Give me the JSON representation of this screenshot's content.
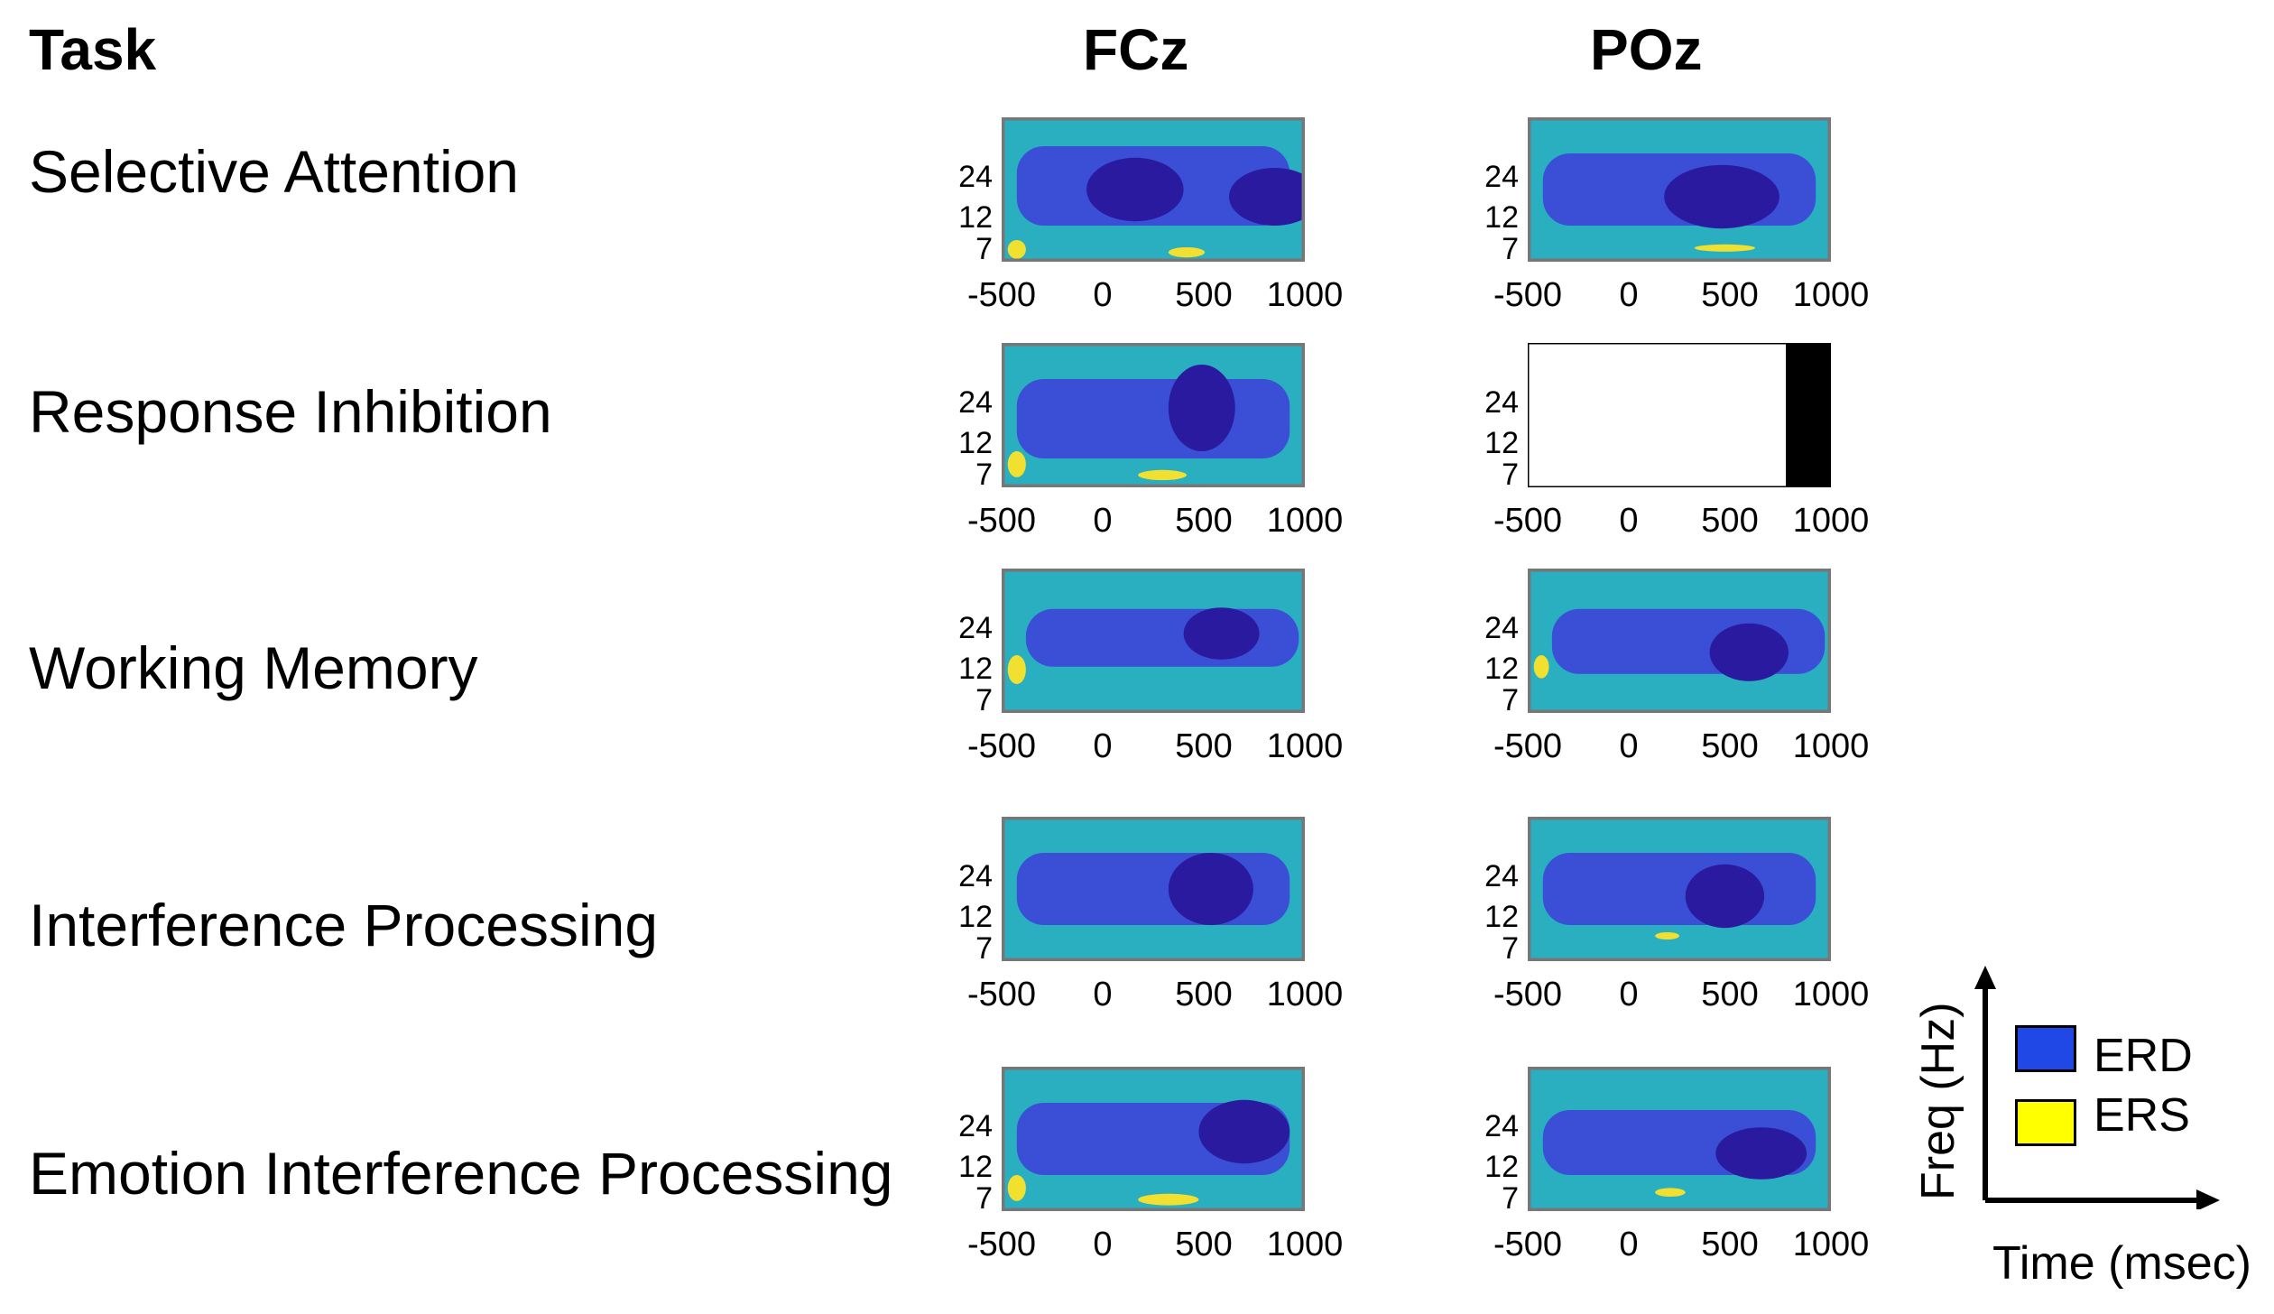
{
  "headers": {
    "task": "Task",
    "col1": "FCz",
    "col2": "POz"
  },
  "tasks": [
    "Selective Attention",
    "Response Inhibition",
    "Working Memory",
    "Interference Processing",
    "Emotion Interference Processing"
  ],
  "chart_data": {
    "type": "heatmap",
    "x_ticks": [
      "-500",
      "0",
      "500",
      "1000"
    ],
    "y_ticks": [
      "24",
      "12",
      "7"
    ],
    "xlim": [
      -500,
      1000
    ],
    "ylim_hz": [
      4,
      40
    ],
    "xlabel": "Time (msec)",
    "ylabel": "Freq (Hz)",
    "colors": {
      "background": "#2aafc0",
      "erd": "#3a4fd6",
      "erd_strong": "#2a1aa0",
      "ers": "#f2e030",
      "frame": "#777777"
    },
    "legend": [
      {
        "label": "ERD",
        "color": "#1f48e6"
      },
      {
        "label": "ERS",
        "color": "#ffff00"
      }
    ],
    "panels": [
      {
        "task": "Selective Attention",
        "electrode": "FCz"
      },
      {
        "task": "Selective Attention",
        "electrode": "POz"
      },
      {
        "task": "Response Inhibition",
        "electrode": "FCz"
      },
      {
        "task": "Response Inhibition",
        "electrode": "POz",
        "missing": true
      },
      {
        "task": "Working Memory",
        "electrode": "FCz"
      },
      {
        "task": "Working Memory",
        "electrode": "POz"
      },
      {
        "task": "Interference Processing",
        "electrode": "FCz"
      },
      {
        "task": "Interference Processing",
        "electrode": "POz"
      },
      {
        "task": "Emotion Interference Processing",
        "electrode": "FCz"
      },
      {
        "task": "Emotion Interference Processing",
        "electrode": "POz"
      }
    ]
  }
}
